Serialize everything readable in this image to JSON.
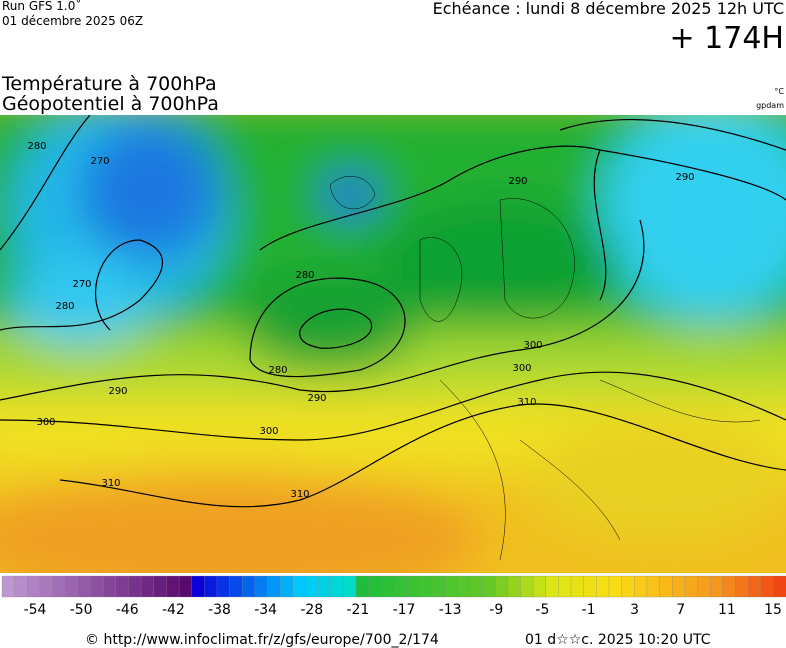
{
  "header": {
    "run": "Run GFS 1.0˚",
    "date": "01 décembre 2025 06Z",
    "echeance": "Echéance : lundi 8 décembre 2025 12h UTC",
    "lead": "+ 174H"
  },
  "titles": {
    "temperature": "Température à 700hPa",
    "geopotential": "Géopotentiel à 700hPa",
    "unit_temp": "°C",
    "unit_geo": "gpdam"
  },
  "contour_labels": [
    "280",
    "270",
    "270",
    "280",
    "290",
    "300",
    "310",
    "300",
    "310",
    "290",
    "280",
    "280",
    "290",
    "290",
    "300",
    "300",
    "310"
  ],
  "colorbar": {
    "labels": [
      -54,
      -50,
      -46,
      -42,
      -38,
      -34,
      -28,
      -21,
      -17,
      -13,
      -9,
      -5,
      -1,
      3,
      7,
      11,
      15
    ]
  },
  "footer": {
    "url": "© http://www.infoclimat.fr/z/gfs/europe/700_2/174",
    "time": "01 d☆☆c. 2025 10:20 UTC"
  }
}
